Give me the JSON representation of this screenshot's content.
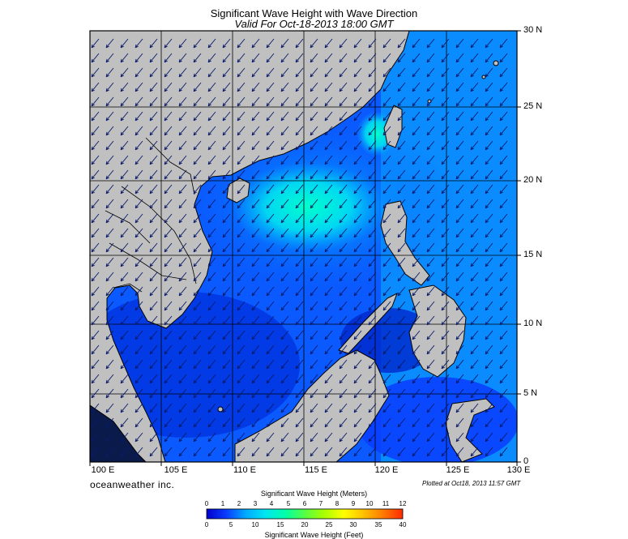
{
  "title": "Significant Wave Height with Wave Direction",
  "subtitle": "Valid For Oct-18-2013 18:00 GMT",
  "brand": "oceanweather inc.",
  "plotted": "Plotted at Oct18, 2013 11:57 GMT",
  "map": {
    "lon_labels": [
      "100 E",
      "105 E",
      "110 E",
      "115 E",
      "120 E",
      "125 E",
      "130 E"
    ],
    "lat_labels": [
      "30 N",
      "25 N",
      "20 N",
      "15 N",
      "10 N",
      "5 N",
      "0"
    ],
    "lon_range": [
      100,
      130
    ],
    "lat_range": [
      0,
      30
    ],
    "land_color": "#c0c0c0",
    "wave_direction": "southwest"
  },
  "colorbar": {
    "title_meters": "Significant Wave Height (Meters)",
    "title_feet": "Significant Wave Height (Feet)",
    "meter_ticks": [
      "0",
      "1",
      "2",
      "3",
      "4",
      "5",
      "6",
      "7",
      "8",
      "9",
      "10",
      "11",
      "12"
    ],
    "feet_ticks": [
      "0",
      "5",
      "10",
      "15",
      "20",
      "25",
      "30",
      "35",
      "40"
    ],
    "colors": [
      "#0000cc",
      "#0a3cff",
      "#00aaff",
      "#00e6f0",
      "#00ffaa",
      "#55ff44",
      "#aaff00",
      "#ffff00",
      "#ffd000",
      "#ff9a00",
      "#ff6000",
      "#ff2a00"
    ]
  }
}
